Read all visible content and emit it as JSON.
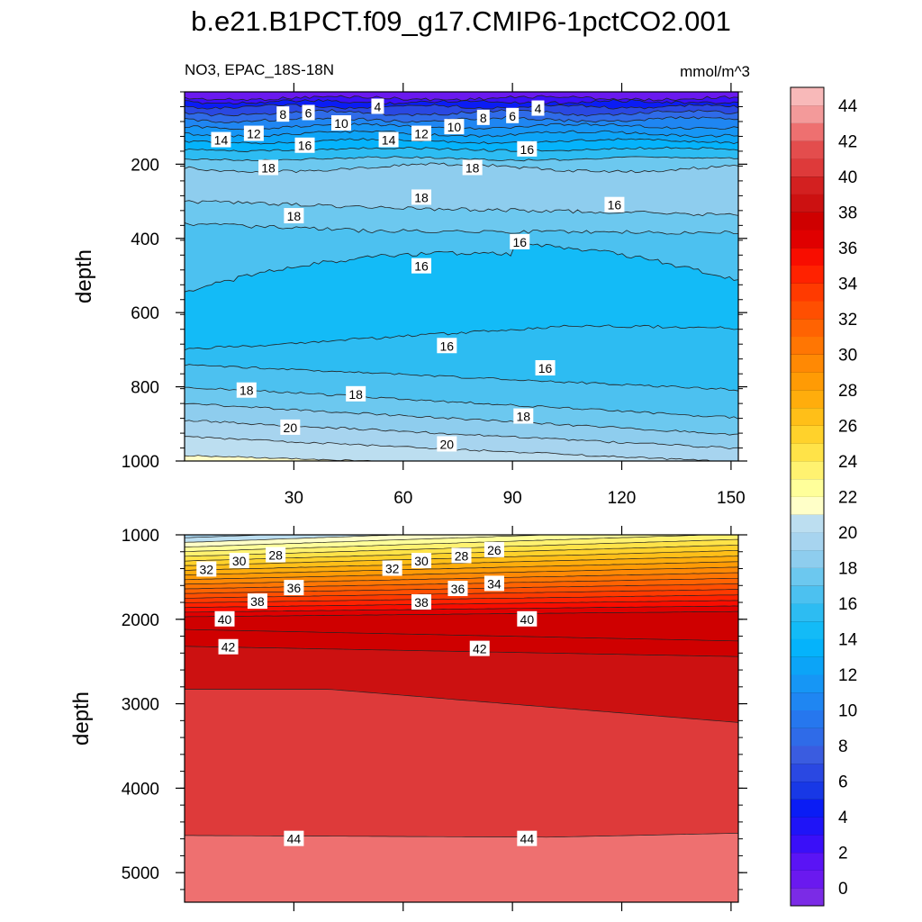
{
  "figure": {
    "title": "b.e21.B1PCT.f09_g17.CMIP6-1pctCO2.001",
    "variable_label": "NO3, EPAC_18S-18N",
    "units_label": "mmol/m^3"
  },
  "chart_data": [
    {
      "type": "contour",
      "panel": "upper",
      "xlabel": "",
      "ylabel": "depth",
      "xlim": [
        0,
        152
      ],
      "ylim": [
        1000,
        5
      ],
      "xticks": [
        30,
        60,
        90,
        120,
        150
      ],
      "yticks": [
        200,
        400,
        600,
        800,
        1000
      ],
      "contour_labels": [
        {
          "v": "4",
          "x": 53,
          "y": 45
        },
        {
          "v": "6",
          "x": 34,
          "y": 62
        },
        {
          "v": "8",
          "x": 27,
          "y": 66
        },
        {
          "v": "10",
          "x": 43,
          "y": 90
        },
        {
          "v": "12",
          "x": 19,
          "y": 118
        },
        {
          "v": "14",
          "x": 10,
          "y": 135
        },
        {
          "v": "16",
          "x": 33,
          "y": 150
        },
        {
          "v": "14",
          "x": 56,
          "y": 135
        },
        {
          "v": "12",
          "x": 65,
          "y": 118
        },
        {
          "v": "10",
          "x": 74,
          "y": 100
        },
        {
          "v": "8",
          "x": 82,
          "y": 75
        },
        {
          "v": "6",
          "x": 90,
          "y": 70
        },
        {
          "v": "4",
          "x": 97,
          "y": 50
        },
        {
          "v": "16",
          "x": 94,
          "y": 160
        },
        {
          "v": "18",
          "x": 23,
          "y": 210
        },
        {
          "v": "18",
          "x": 79,
          "y": 210
        },
        {
          "v": "18",
          "x": 65,
          "y": 290
        },
        {
          "v": "16",
          "x": 118,
          "y": 310
        },
        {
          "v": "18",
          "x": 30,
          "y": 340
        },
        {
          "v": "16",
          "x": 92,
          "y": 410
        },
        {
          "v": "16",
          "x": 65,
          "y": 475
        },
        {
          "v": "16",
          "x": 72,
          "y": 690
        },
        {
          "v": "16",
          "x": 99,
          "y": 750
        },
        {
          "v": "18",
          "x": 17,
          "y": 810
        },
        {
          "v": "18",
          "x": 47,
          "y": 820
        },
        {
          "v": "18",
          "x": 93,
          "y": 880
        },
        {
          "v": "20",
          "x": 29,
          "y": 910
        },
        {
          "v": "20",
          "x": 72,
          "y": 955
        }
      ]
    },
    {
      "type": "contour",
      "panel": "lower",
      "xlabel": "",
      "ylabel": "depth",
      "xlim": [
        0,
        152
      ],
      "ylim": [
        5350,
        1000
      ],
      "xticks": [
        30,
        60,
        90,
        120,
        150
      ],
      "yticks": [
        1000,
        2000,
        3000,
        4000,
        5000
      ],
      "contour_labels": [
        {
          "v": "32",
          "x": 6,
          "y": 1410
        },
        {
          "v": "30",
          "x": 15,
          "y": 1310
        },
        {
          "v": "28",
          "x": 25,
          "y": 1240
        },
        {
          "v": "36",
          "x": 30,
          "y": 1630
        },
        {
          "v": "38",
          "x": 20,
          "y": 1790
        },
        {
          "v": "40",
          "x": 11,
          "y": 2000
        },
        {
          "v": "42",
          "x": 12,
          "y": 2330
        },
        {
          "v": "32",
          "x": 57,
          "y": 1400
        },
        {
          "v": "30",
          "x": 65,
          "y": 1310
        },
        {
          "v": "28",
          "x": 76,
          "y": 1250
        },
        {
          "v": "26",
          "x": 85,
          "y": 1180
        },
        {
          "v": "34",
          "x": 85,
          "y": 1580
        },
        {
          "v": "36",
          "x": 75,
          "y": 1640
        },
        {
          "v": "38",
          "x": 65,
          "y": 1800
        },
        {
          "v": "40",
          "x": 94,
          "y": 2000
        },
        {
          "v": "42",
          "x": 81,
          "y": 2350
        },
        {
          "v": "44",
          "x": 30,
          "y": 4600
        },
        {
          "v": "44",
          "x": 94,
          "y": 4600
        }
      ]
    }
  ],
  "colorbar": {
    "levels": [
      "0",
      "2",
      "4",
      "6",
      "8",
      "10",
      "12",
      "14",
      "16",
      "18",
      "20",
      "22",
      "24",
      "26",
      "28",
      "30",
      "32",
      "34",
      "36",
      "38",
      "40",
      "42",
      "44"
    ],
    "colors": [
      "#7b2be6",
      "#6a19ef",
      "#5a14f5",
      "#3a0ff8",
      "#1f14f7",
      "#0a1cf5",
      "#1838e6",
      "#2a48e2",
      "#3a5ce0",
      "#2f6be8",
      "#2677ee",
      "#1f86f2",
      "#1696f5",
      "#0ca4f7",
      "#05b3fb",
      "#13bbf7",
      "#2dbcf2",
      "#4cc1f0",
      "#6cc8ef",
      "#8ecdee",
      "#a7d4ef",
      "#bcdef0",
      "#ffffc8",
      "#ffff9a",
      "#fff270",
      "#ffe348",
      "#ffd22b",
      "#ffbf18",
      "#ffad0c",
      "#ff9b05",
      "#ff8904",
      "#ff7603",
      "#ff6302",
      "#ff4f01",
      "#ff3a00",
      "#ff2200",
      "#f80d00",
      "#e00000",
      "#cf0000",
      "#cc1111",
      "#d32020",
      "#de3a3a",
      "#e34d4d",
      "#ee7070",
      "#f39a9a",
      "#f8b9b9"
    ]
  }
}
